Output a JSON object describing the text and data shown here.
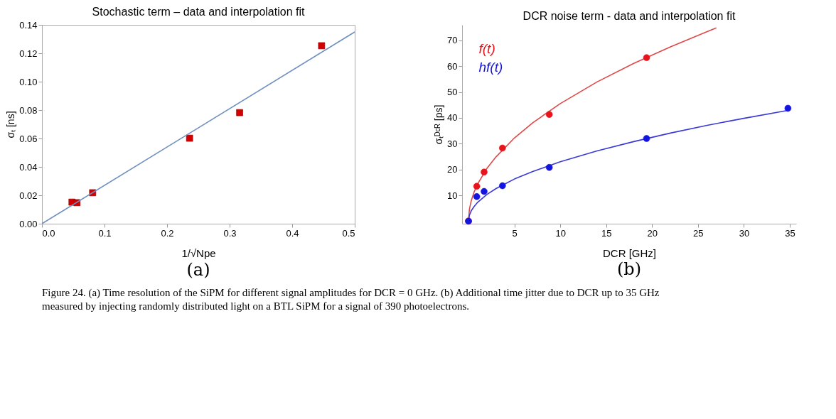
{
  "chart_data": [
    {
      "type": "scatter",
      "title": "Stochastic term – data and interpolation fit",
      "xlabel": "1/√Npe",
      "ylabel": "σₜ [ns]",
      "marker": "square",
      "grid": false,
      "legend": false,
      "xlim": [
        0,
        0.5
      ],
      "ylim": [
        0,
        0.14
      ],
      "xticks": [
        {
          "value": 0,
          "label": "0.0"
        },
        0.1,
        0.2,
        0.3,
        0.4,
        0.5
      ],
      "yticks": [
        {
          "value": 0,
          "label": "0.00"
        },
        {
          "value": 0.02,
          "label": "0.02"
        },
        {
          "value": 0.04,
          "label": "0.04"
        },
        {
          "value": 0.06,
          "label": "0.06"
        },
        {
          "value": 0.08,
          "label": "0.08"
        },
        {
          "value": 0.1,
          "label": "0.10"
        },
        {
          "value": 0.12,
          "label": "0.12"
        },
        {
          "value": 0.14,
          "label": "0.14"
        }
      ],
      "annotations": [
        "(a)"
      ],
      "series": [
        {
          "color": "#d40000",
          "x": [
            0.048,
            0.056,
            0.081,
            0.236,
            0.316,
            0.447
          ],
          "values": [
            0.0152,
            0.0148,
            0.0218,
            0.0602,
            0.0782,
            0.1253
          ]
        },
        {
          "type": "line",
          "marker": "none",
          "color": "#6f8fbf",
          "line_style": "solid",
          "x": [
            0,
            0.5
          ],
          "values": [
            0,
            0.135
          ]
        }
      ]
    },
    {
      "type": "scatter",
      "title": "DCR noise term - data and interpolation fit",
      "xlabel": "DCR [GHz]",
      "ylabel": "σₜᴰᶜᴿ [ps]",
      "marker": "circle",
      "grid": false,
      "legend": "top left",
      "xlim": [
        -0.7,
        35.7
      ],
      "ylim": [
        -1,
        76
      ],
      "xticks": [
        5,
        10,
        15,
        20,
        25,
        30,
        35
      ],
      "yticks": [
        10,
        20,
        30,
        40,
        50,
        60,
        70
      ],
      "annotations": [
        "(b)",
        "Figure 24. (a) Time resolution of the SiPM for different signal amplitudes for DCR = 0 GHz. (b) Additional time jitter due to DCR up to 35 GHz measured by injecting randomly distributed light on a BTL SiPM for a signal of 390 photoelectrons."
      ],
      "series": [
        {
          "type": "line",
          "marker": "none",
          "color": "#e04848",
          "line_style": "solid",
          "x": [
            0,
            0.1,
            0.3,
            0.6,
            1,
            2,
            3,
            5,
            7,
            10,
            14,
            18,
            22,
            26,
            27
          ],
          "values": [
            0,
            4.6,
            7.9,
            11.2,
            14.4,
            20.4,
            24.9,
            32.2,
            38.1,
            45.5,
            53.9,
            61.1,
            67.5,
            73.4,
            74.8
          ]
        },
        {
          "type": "line",
          "marker": "none",
          "color": "#3a3ad8",
          "line_style": "solid",
          "x": [
            0,
            0.1,
            0.3,
            0.6,
            1,
            2,
            3,
            5,
            7,
            10,
            14,
            18,
            22,
            26,
            30,
            35
          ],
          "values": [
            0,
            2.3,
            4.0,
            5.6,
            7.3,
            10.3,
            12.6,
            16.3,
            19.2,
            23.0,
            27.2,
            30.8,
            34.1,
            37.1,
            39.8,
            43.0
          ]
        },
        {
          "name": "f(t)",
          "color": "#e8141c",
          "x": [
            0,
            0.9,
            1.7,
            3.7,
            8.8,
            19.4
          ],
          "values": [
            0,
            13.5,
            19,
            28.3,
            41.3,
            63.3
          ]
        },
        {
          "name": "hf(t)",
          "color": "#1414e0",
          "x": [
            0,
            0.9,
            1.7,
            3.7,
            8.8,
            19.4,
            34.8
          ],
          "values": [
            0,
            9.5,
            11.5,
            13.7,
            20.8,
            32,
            43.7
          ]
        }
      ]
    }
  ]
}
